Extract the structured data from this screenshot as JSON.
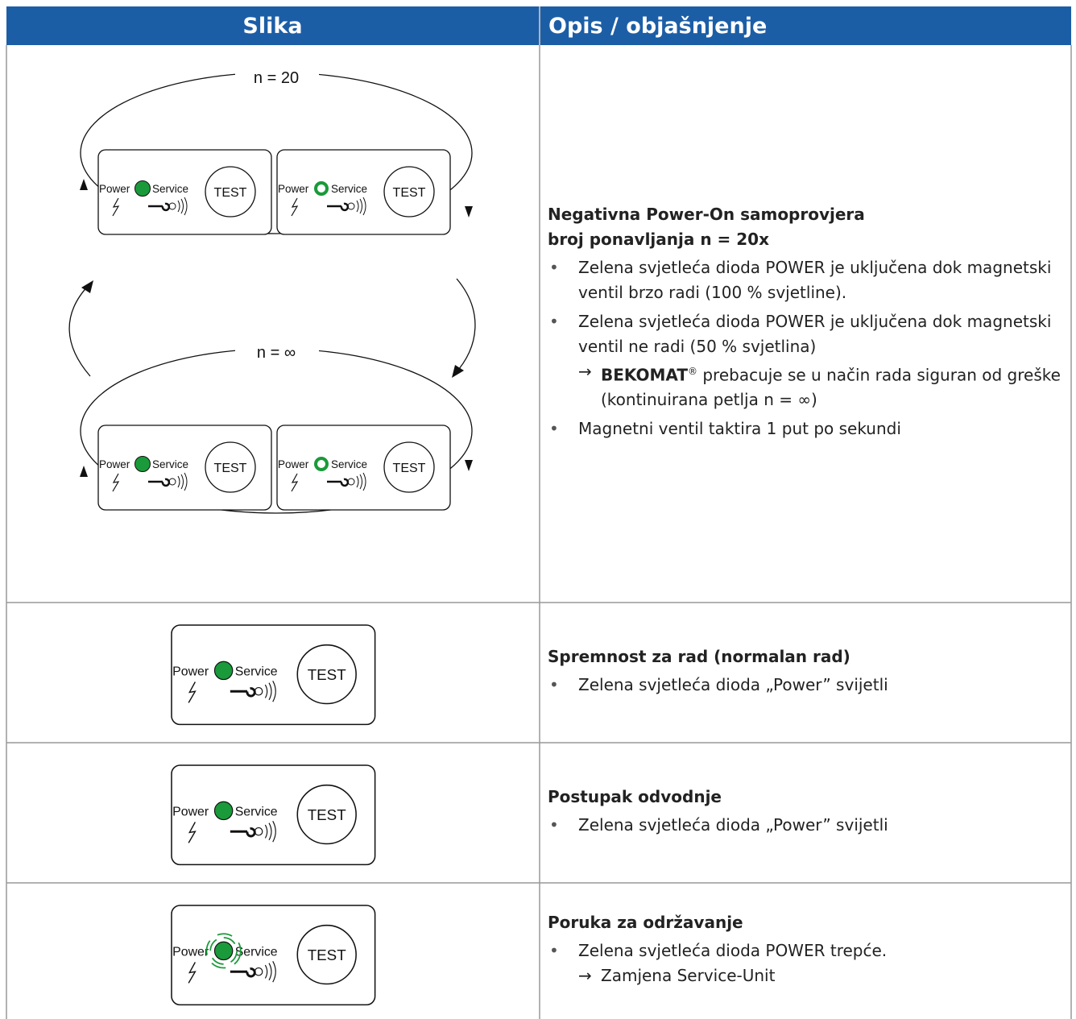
{
  "header": {
    "col1": "Slika",
    "col2": "Opis / objašnjenje"
  },
  "diagram": {
    "power": "Power",
    "service": "Service",
    "test": "TEST",
    "n20": "n = 20",
    "ninf": "n = ∞"
  },
  "rows": [
    {
      "title": "Negativna Power-On samoprovjera",
      "subtitle": "broj ponavljanja n = 20x",
      "items": [
        {
          "text": "Zelena svjetleća dioda POWER je uključena dok magnetski ventil brzo radi (100 % svjetline)."
        },
        {
          "text": "Zelena svjetleća dioda POWER je uključena dok magnetski ventil ne radi (50 % svjetlina)",
          "sub": {
            "brand": "BEKOMAT",
            "reg": "®",
            "text": " prebacuje se u način rada siguran od greške (kontinuirana petlja n = ∞)"
          }
        },
        {
          "text": "Magnetni ventil taktira 1 put po sekundi"
        }
      ]
    },
    {
      "title": "Spremnost za rad (normalan rad)",
      "items": [
        {
          "text": "Zelena svjetleća dioda „Power” svijetli"
        }
      ]
    },
    {
      "title": "Postupak odvodnje",
      "items": [
        {
          "text": "Zelena svjetleća dioda „Power” svijetli"
        }
      ]
    },
    {
      "title": "Poruka za održavanje",
      "items": [
        {
          "text": "Zelena svjetleća dioda POWER trepće.",
          "sub": {
            "text": "Zamjena Service-Unit"
          }
        }
      ]
    }
  ]
}
